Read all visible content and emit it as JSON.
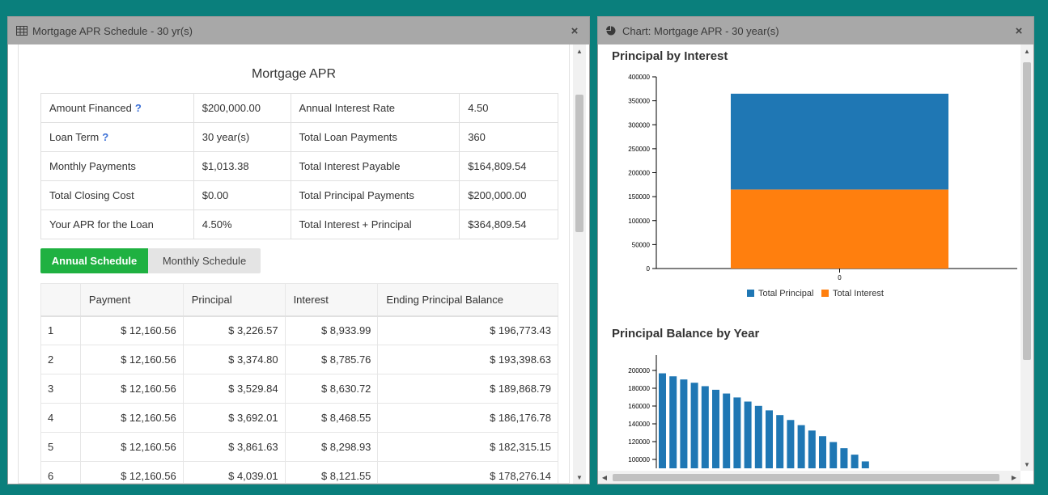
{
  "left_window": {
    "title": "Mortgage APR Schedule - 30 yr(s)",
    "close_label": "×",
    "report_title": "Mortgage APR",
    "summary": [
      {
        "label": "Amount Financed",
        "help": "?",
        "value": "$200,000.00",
        "label2": "Annual Interest Rate",
        "value2": "4.50"
      },
      {
        "label": "Loan Term",
        "help": "?",
        "value": "30 year(s)",
        "label2": "Total Loan Payments",
        "value2": "360"
      },
      {
        "label": "Monthly Payments",
        "help": "",
        "value": "$1,013.38",
        "label2": "Total Interest Payable",
        "value2": "$164,809.54"
      },
      {
        "label": "Total Closing Cost",
        "help": "",
        "value": "$0.00",
        "label2": "Total Principal Payments",
        "value2": "$200,000.00"
      },
      {
        "label": "Your APR for the Loan",
        "help": "",
        "value": "4.50%",
        "label2": "Total Interest + Principal",
        "value2": "$364,809.54"
      }
    ],
    "tabs": {
      "annual": "Annual Schedule",
      "monthly": "Monthly Schedule"
    },
    "columns": [
      "",
      "Payment",
      "Principal",
      "Interest",
      "Ending Principal Balance"
    ],
    "rows": [
      [
        "1",
        "$ 12,160.56",
        "$ 3,226.57",
        "$ 8,933.99",
        "$ 196,773.43"
      ],
      [
        "2",
        "$ 12,160.56",
        "$ 3,374.80",
        "$ 8,785.76",
        "$ 193,398.63"
      ],
      [
        "3",
        "$ 12,160.56",
        "$ 3,529.84",
        "$ 8,630.72",
        "$ 189,868.79"
      ],
      [
        "4",
        "$ 12,160.56",
        "$ 3,692.01",
        "$ 8,468.55",
        "$ 186,176.78"
      ],
      [
        "5",
        "$ 12,160.56",
        "$ 3,861.63",
        "$ 8,298.93",
        "$ 182,315.15"
      ],
      [
        "6",
        "$ 12,160.56",
        "$ 4,039.01",
        "$ 8,121.55",
        "$ 178,276.14"
      ]
    ]
  },
  "right_window": {
    "title": "Chart: Mortgage APR - 30 year(s)",
    "close_label": "×"
  },
  "chart_data": [
    {
      "type": "bar",
      "stacked": true,
      "title": "Principal by Interest",
      "categories": [
        "0"
      ],
      "series": [
        {
          "name": "Total Principal",
          "values": [
            200000
          ],
          "color": "#1f77b4"
        },
        {
          "name": "Total Interest",
          "values": [
            164809.54
          ],
          "color": "#ff7f0e"
        }
      ],
      "yticks": [
        "0",
        "50000",
        "100000",
        "150000",
        "200000",
        "250000",
        "300000",
        "350000",
        "400000"
      ],
      "ylim": [
        0,
        400000
      ],
      "legend": "bottom",
      "stack_order_note": "orange segment drawn at bottom, blue on top"
    },
    {
      "type": "bar",
      "title": "Principal Balance by Year",
      "series": [
        {
          "values": [
            196773.43,
            193398.63,
            189868.79,
            186176.78,
            182315.15,
            178276.14,
            174051,
            169632,
            165010,
            160176,
            155120,
            149832,
            144301,
            138516,
            132465,
            126136,
            119516,
            112592,
            105350,
            97775
          ],
          "color": "#1f77b4"
        }
      ],
      "yticks": [
        "100000",
        "120000",
        "140000",
        "160000",
        "180000",
        "200000"
      ],
      "ylim": [
        90000,
        210000
      ],
      "legend": "none"
    }
  ]
}
